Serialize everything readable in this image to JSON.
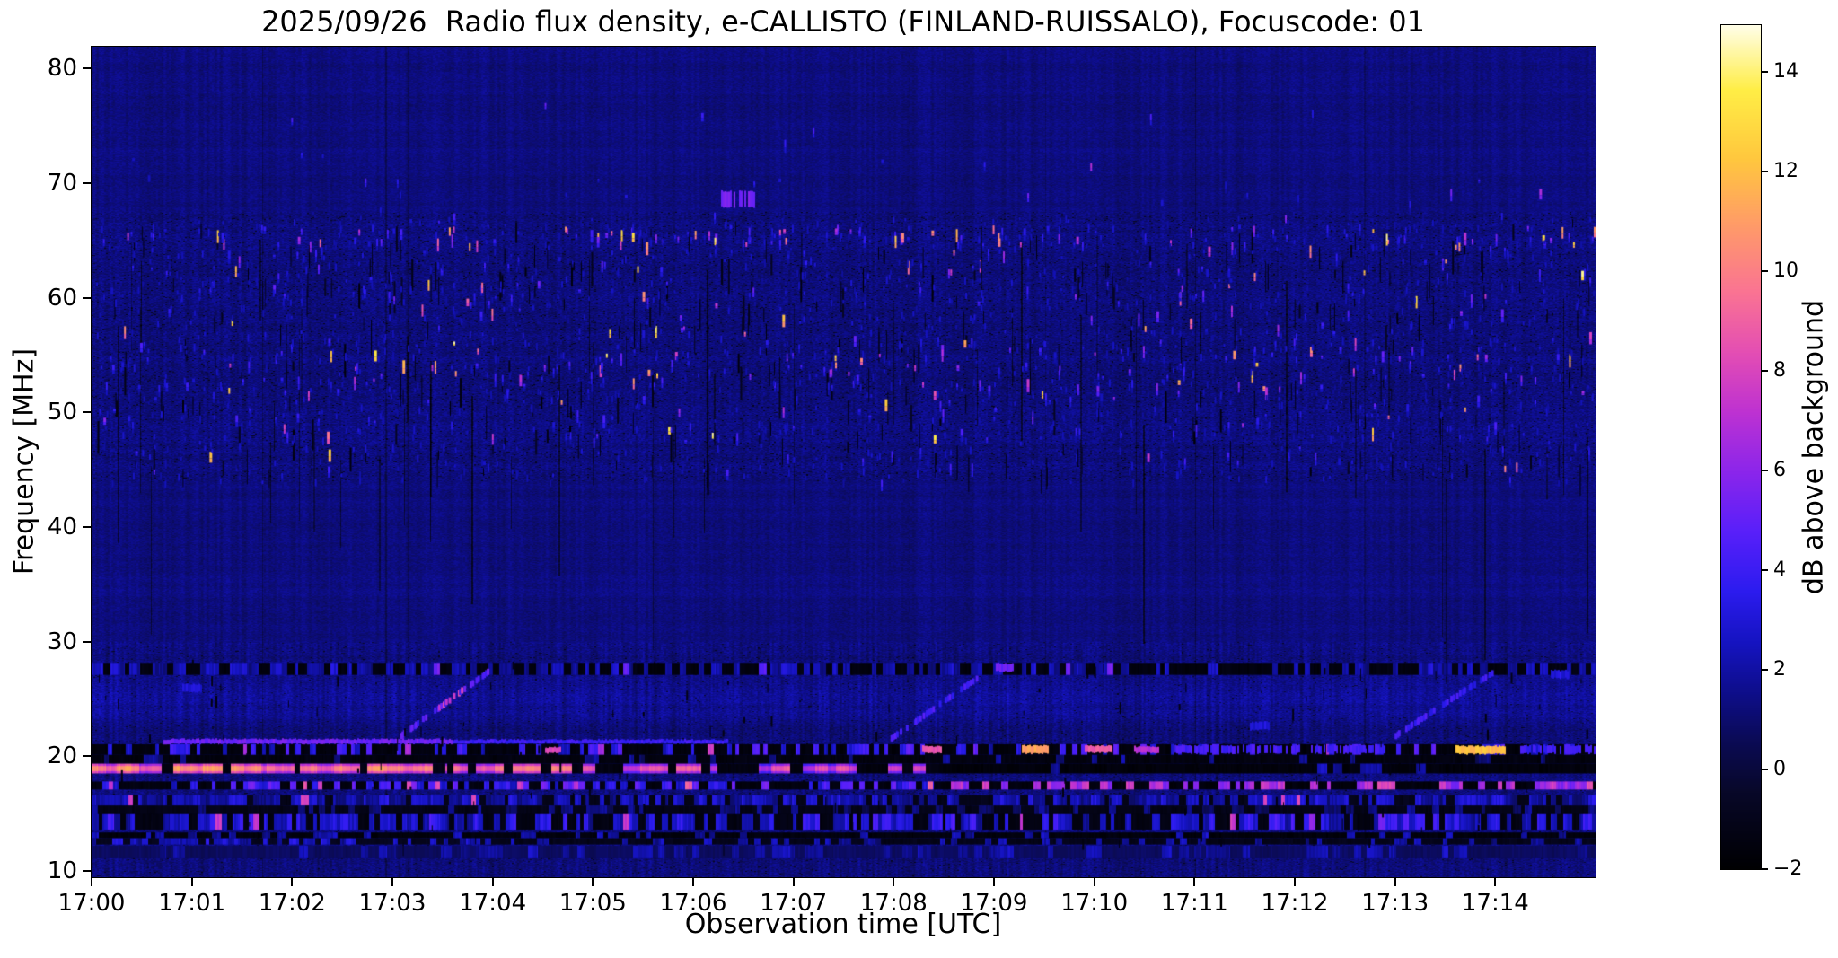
{
  "chart_data": {
    "type": "heatmap",
    "title": "2025/09/26  Radio flux density, e-CALLISTO (FINLAND-RUISSALO), Focuscode: 01",
    "xlabel": "Observation time [UTC]",
    "ylabel": "Frequency [MHz]",
    "colorbar_label": "dB above background",
    "date": "2025/09/26",
    "instrument": "e-CALLISTO",
    "station": "FINLAND-RUISSALO",
    "focuscode": "01",
    "x_ticks": [
      "17:00",
      "17:01",
      "17:02",
      "17:03",
      "17:04",
      "17:05",
      "17:06",
      "17:07",
      "17:08",
      "17:09",
      "17:10",
      "17:11",
      "17:12",
      "17:13",
      "17:14"
    ],
    "x_range_minutes": [
      0,
      15
    ],
    "y_ticks": [
      "10",
      "20",
      "30",
      "40",
      "50",
      "60",
      "70",
      "80"
    ],
    "freq_range_mhz": [
      9.45,
      81.9
    ],
    "colorbar_ticks": [
      {
        "value": 14,
        "label": "14"
      },
      {
        "value": 12,
        "label": "12"
      },
      {
        "value": 10,
        "label": "10"
      },
      {
        "value": 8,
        "label": "8"
      },
      {
        "value": 6,
        "label": "6"
      },
      {
        "value": 4,
        "label": "4"
      },
      {
        "value": 2,
        "label": "2"
      },
      {
        "value": 0,
        "label": "0"
      },
      {
        "value": -2,
        "label": "−2"
      }
    ],
    "colorbar_range_db": [
      -2,
      14.94
    ],
    "value_range_db": [
      -2,
      15
    ],
    "background_level_db": 1.3,
    "colormap": "gnuplot2-like",
    "colormap_stops": [
      [
        0.0,
        "#000002"
      ],
      [
        0.09,
        "#080828"
      ],
      [
        0.15,
        "#0b0b54"
      ],
      [
        0.21,
        "#0e0e8c"
      ],
      [
        0.27,
        "#1614c3"
      ],
      [
        0.33,
        "#2d1cf0"
      ],
      [
        0.4,
        "#5a20fa"
      ],
      [
        0.47,
        "#8c26eb"
      ],
      [
        0.54,
        "#be32d2"
      ],
      [
        0.61,
        "#e44eb4"
      ],
      [
        0.68,
        "#fa7394"
      ],
      [
        0.76,
        "#ff9b69"
      ],
      [
        0.84,
        "#ffc83e"
      ],
      [
        0.92,
        "#ffee46"
      ],
      [
        1.0,
        "#fffff0"
      ]
    ],
    "features": {
      "texture_seed": 20250926,
      "haze": {
        "f": [
          22.6,
          27.4
        ],
        "amp_db": 0.75
      },
      "bands": [
        {
          "f": [
            27.1,
            28.15
          ],
          "t": [
            0,
            15
          ],
          "seg": 0.055,
          "duty": 0.5,
          "v": [
            1.3,
            3.0
          ],
          "dark": -1.6,
          "rare": [
            0.04,
            4.5,
            5.5
          ]
        },
        {
          "f": [
            20.12,
            21.05
          ],
          "t": [
            0,
            15
          ],
          "seg": 0.05,
          "duty": 0.34,
          "v": [
            2.0,
            5.0
          ],
          "dark": -1.7,
          "rare": [
            0.05,
            6.0,
            8.0
          ]
        },
        {
          "f": [
            19.35,
            20.12
          ],
          "t": [
            0,
            15
          ],
          "seg": 0.06,
          "duty": 0.1,
          "v": [
            0.8,
            2.2
          ],
          "dark": -1.6
        },
        {
          "f": [
            18.5,
            19.35
          ],
          "t": [
            0,
            3.55
          ],
          "seg": 0.09,
          "duty": 0.95,
          "v": [
            8.5,
            11.3
          ],
          "dark": -1.5,
          "core": true
        },
        {
          "f": [
            18.5,
            19.35
          ],
          "t": [
            3.55,
            5.3
          ],
          "seg": 0.09,
          "duty": 0.6,
          "v": [
            8.0,
            10.8
          ],
          "dark": -1.6,
          "core": true
        },
        {
          "f": [
            18.5,
            19.35
          ],
          "t": [
            5.3,
            8.45
          ],
          "seg": 0.1,
          "duty": 0.5,
          "v": [
            6.5,
            9.2
          ],
          "dark": -1.6,
          "core": true
        },
        {
          "f": [
            18.5,
            19.35
          ],
          "t": [
            8.45,
            15
          ],
          "seg": 0.08,
          "duty": 0.1,
          "v": [
            1.5,
            3.5
          ],
          "dark": -1.75
        },
        {
          "f": [
            17.1,
            17.8
          ],
          "t": [
            0,
            8.4
          ],
          "seg": 0.055,
          "duty": 0.5,
          "v": [
            2.5,
            5.5
          ],
          "dark": -1.6,
          "rare": [
            0.1,
            7.0,
            9.0
          ]
        },
        {
          "f": [
            17.1,
            17.8
          ],
          "t": [
            8.4,
            15
          ],
          "seg": 0.06,
          "duty": 0.45,
          "v": [
            5.5,
            8.2
          ],
          "dark": -1.65
        },
        {
          "f": [
            15.7,
            16.6
          ],
          "t": [
            0,
            15
          ],
          "seg": 0.05,
          "duty": 0.72,
          "v": [
            1.2,
            3.3
          ],
          "dark": -1.2,
          "rare": [
            0.02,
            7.5,
            8.5
          ]
        },
        {
          "f": [
            14.9,
            15.7
          ],
          "t": [
            0,
            15
          ],
          "seg": 0.06,
          "duty": 0.3,
          "v": [
            0.6,
            1.8
          ],
          "dark": -1.3
        },
        {
          "f": [
            13.6,
            14.95
          ],
          "t": [
            0,
            15
          ],
          "seg": 0.05,
          "duty": 0.62,
          "v": [
            1.6,
            4.4
          ],
          "dark": -1.5,
          "rare": [
            0.07,
            5.5,
            8.3
          ]
        },
        {
          "f": [
            12.85,
            13.35
          ],
          "t": [
            0,
            15
          ],
          "seg": 0.07,
          "duty": 0.15,
          "v": [
            1.4,
            2.8
          ],
          "dark": -1.7
        },
        {
          "f": [
            12.3,
            12.85
          ],
          "t": [
            0,
            4
          ],
          "seg": 0.05,
          "duty": 0.55,
          "v": [
            1.5,
            3.4
          ],
          "dark": -1.0
        },
        {
          "f": [
            12.3,
            12.85
          ],
          "t": [
            4,
            15
          ],
          "seg": 0.06,
          "duty": 0.3,
          "v": [
            1.2,
            2.6
          ],
          "dark": -1.2
        },
        {
          "f": [
            11.1,
            12.2
          ],
          "t": [
            0,
            15
          ],
          "seg": 0.08,
          "duty": 0.25,
          "v": [
            1.4,
            2.6
          ],
          "dark": 0.6
        }
      ],
      "highlights": [
        {
          "t": [
            0.72,
            3.6
          ],
          "f": [
            21.1,
            21.5
          ],
          "v": 5.3
        },
        {
          "t": [
            3.6,
            6.35
          ],
          "f": [
            21.15,
            21.45
          ],
          "v": 4.0
        },
        {
          "t": [
            9.28,
            9.55
          ],
          "f": [
            20.25,
            20.95
          ],
          "v": 11.2
        },
        {
          "t": [
            13.6,
            14.1
          ],
          "f": [
            20.2,
            20.9
          ],
          "v": 12.0
        },
        {
          "t": [
            8.28,
            8.48
          ],
          "f": [
            20.3,
            20.9
          ],
          "v": 8.6
        },
        {
          "t": [
            9.9,
            10.18
          ],
          "f": [
            20.3,
            20.9
          ],
          "v": 8.8
        },
        {
          "t": [
            10.4,
            10.65
          ],
          "f": [
            20.3,
            20.85
          ],
          "v": 7.2
        },
        {
          "t": [
            4.52,
            4.68
          ],
          "f": [
            20.3,
            20.8
          ],
          "v": 8.0
        },
        {
          "t": [
            10.8,
            12.9
          ],
          "f": [
            20.25,
            20.95
          ],
          "v": 4.2,
          "dashed": true
        },
        {
          "t": [
            14.25,
            15.0
          ],
          "f": [
            20.25,
            20.95
          ],
          "v": 4.0,
          "dashed": true
        },
        {
          "t": [
            6.28,
            6.62
          ],
          "f": [
            67.9,
            69.3
          ],
          "v": 5.4,
          "dashed": true
        },
        {
          "t": [
            9.02,
            9.2
          ],
          "f": [
            27.4,
            28.1
          ],
          "v": 5.2
        },
        {
          "t": [
            0.9,
            1.1
          ],
          "f": [
            25.6,
            26.3
          ],
          "v": 2.8
        },
        {
          "t": [
            11.55,
            11.75
          ],
          "f": [
            22.3,
            23.0
          ],
          "v": 3.0
        },
        {
          "t": [
            14.55,
            14.75
          ],
          "f": [
            26.8,
            27.5
          ],
          "v": 3.2
        }
      ],
      "streaks": [
        {
          "t": [
            3.08,
            3.95
          ],
          "f": [
            21.8,
            27.4
          ],
          "v": 4.6,
          "hot": 7.8
        },
        {
          "t": [
            7.98,
            8.82
          ],
          "f": [
            21.6,
            26.8
          ],
          "v": 4.2
        },
        {
          "t": [
            13.0,
            13.98
          ],
          "f": [
            21.8,
            27.4
          ],
          "v": 3.9
        }
      ],
      "speckle_rows": [
        {
          "f": [
            64.8,
            66.4
          ],
          "n": 150,
          "bright": 0.5
        },
        {
          "f": [
            62.3,
            64.8
          ],
          "n": 70,
          "bright": 0.3
        },
        {
          "f": [
            56.0,
            62.3
          ],
          "n": 130,
          "bright": 0.3
        },
        {
          "f": [
            52.0,
            56.0
          ],
          "n": 190,
          "bright": 0.35
        },
        {
          "f": [
            48.0,
            52.0
          ],
          "n": 100,
          "bright": 0.25
        },
        {
          "f": [
            44.0,
            48.0
          ],
          "n": 40,
          "bright": 0.15
        },
        {
          "f": [
            66.4,
            70.5
          ],
          "n": 26,
          "bright": 0.2
        },
        {
          "f": [
            70.5,
            77.5
          ],
          "n": 14,
          "bright": 0.15
        }
      ],
      "dim_speckles": {
        "f": [
          44,
          67.2
        ],
        "n": 1100
      },
      "dark_streaks": {
        "speckle_zone_n": 330,
        "low_zone_n": 130,
        "tall_n": 7,
        "upper_col_n": 55
      }
    }
  }
}
